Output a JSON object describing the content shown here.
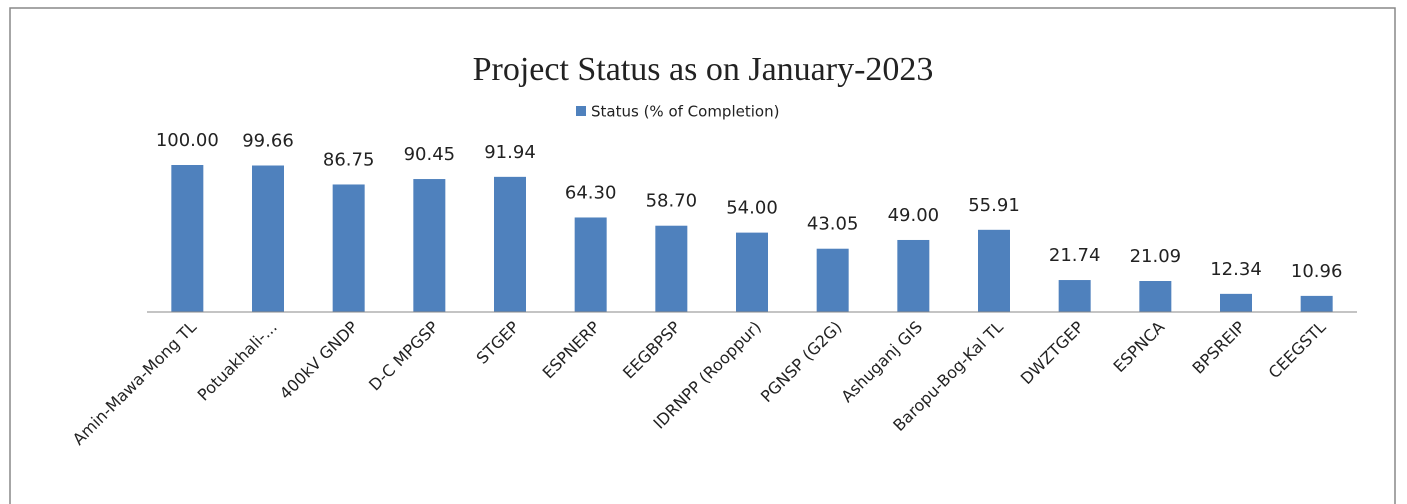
{
  "chart_data": {
    "type": "bar",
    "title": "Project Status as on January-2023",
    "categories": [
      "Amin-Mawa-Mong TL",
      "Potuakhali-...",
      "400kV GNDP",
      "D-C MPGSP",
      "STGEP",
      "ESPNERP",
      "EEGBPSP",
      "IDRNPP (Rooppur)",
      "PGNSP (G2G)",
      "Ashuganj GIS",
      "Baropu-Bog-Kal TL",
      "DWZTGEP",
      "ESPNCA",
      "BPSREIP",
      "CEEGSTL"
    ],
    "series": [
      {
        "name": "Status (% of Completion)",
        "color": "#4f81bd",
        "values": [
          100,
          99.66,
          86.75,
          90.45,
          91.94,
          64.3,
          58.7,
          54,
          43.05,
          49,
          55.91,
          21.74,
          21.09,
          12.34,
          10.96
        ],
        "value_labels": [
          "100.00",
          "99.66",
          "86.75",
          "90.45",
          "91.94",
          "64.30",
          "58.70",
          "54.00",
          "43.05",
          "49.00",
          "55.91",
          "21.74",
          "21.09",
          "12.34",
          "10.96"
        ]
      }
    ],
    "ylim": [
      0,
      100
    ],
    "legend": "top"
  }
}
